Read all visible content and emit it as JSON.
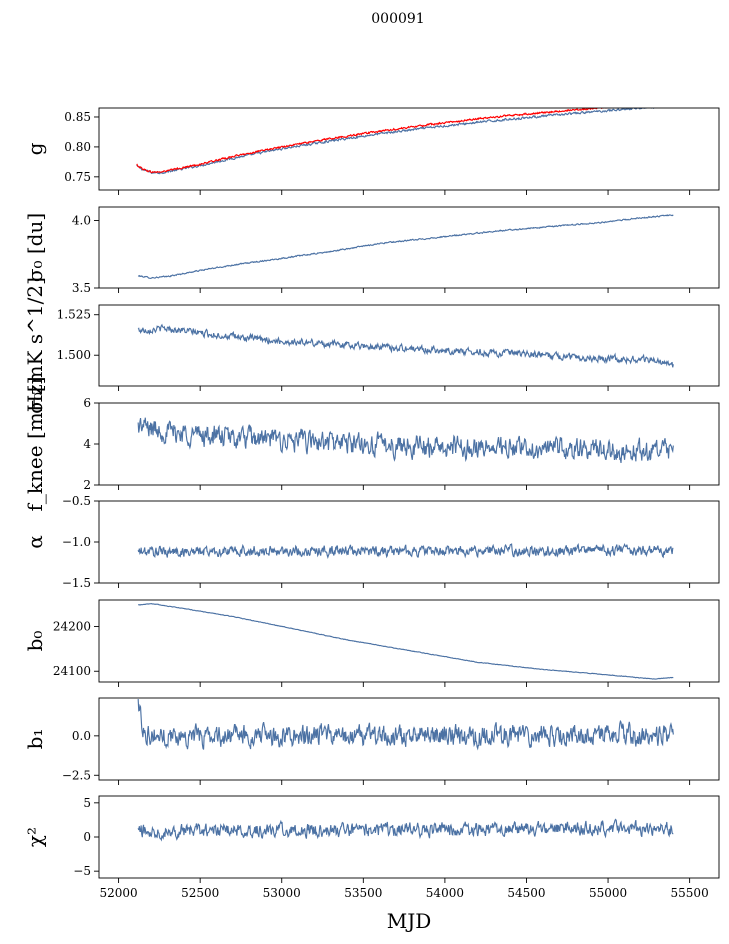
{
  "figure": {
    "title": "000091"
  },
  "chart_data": [
    {
      "type": "line",
      "id": "g",
      "ylabel": "g",
      "ylim": [
        0.728,
        0.865
      ],
      "yticks": [
        0.75,
        0.8,
        0.85
      ],
      "ytick_labels": [
        "0.75",
        "0.80",
        "0.85"
      ],
      "xlim": [
        51880,
        55680
      ],
      "series": [
        {
          "color": "#4c72a4",
          "noise": 0.0015,
          "points": [
            [
              52110,
              0.768
            ],
            [
              52150,
              0.762
            ],
            [
              52200,
              0.757
            ],
            [
              52260,
              0.757
            ],
            [
              52350,
              0.761
            ],
            [
              52500,
              0.769
            ],
            [
              52700,
              0.781
            ],
            [
              53000,
              0.797
            ],
            [
              53300,
              0.81
            ],
            [
              53600,
              0.822
            ],
            [
              53900,
              0.832
            ],
            [
              54200,
              0.841
            ],
            [
              54500,
              0.849
            ],
            [
              54800,
              0.856
            ],
            [
              55050,
              0.862
            ],
            [
              55400,
              0.869
            ]
          ]
        },
        {
          "color": "#ff0000",
          "noise": 0.0012,
          "points": [
            [
              52110,
              0.77
            ],
            [
              52150,
              0.763
            ],
            [
              52200,
              0.758
            ],
            [
              52260,
              0.758
            ],
            [
              52350,
              0.763
            ],
            [
              52500,
              0.771
            ],
            [
              52700,
              0.784
            ],
            [
              53000,
              0.8
            ],
            [
              53300,
              0.814
            ],
            [
              53600,
              0.826
            ],
            [
              53900,
              0.837
            ],
            [
              54200,
              0.847
            ],
            [
              54500,
              0.855
            ],
            [
              54800,
              0.862
            ],
            [
              55000,
              0.866
            ]
          ]
        }
      ]
    },
    {
      "type": "line",
      "id": "sigma0_du",
      "ylabel": "σ₀ [du]",
      "ylim": [
        3.5,
        4.1
      ],
      "yticks": [
        3.5,
        4.0
      ],
      "ytick_labels": [
        "3.5",
        "4.0"
      ],
      "xlim": [
        51880,
        55680
      ],
      "series": [
        {
          "color": "#4c72a4",
          "noise": 0.004,
          "points": [
            [
              52120,
              3.59
            ],
            [
              52200,
              3.575
            ],
            [
              52300,
              3.585
            ],
            [
              52500,
              3.63
            ],
            [
              52700,
              3.67
            ],
            [
              53000,
              3.72
            ],
            [
              53300,
              3.77
            ],
            [
              53600,
              3.83
            ],
            [
              54000,
              3.88
            ],
            [
              54300,
              3.92
            ],
            [
              54700,
              3.96
            ],
            [
              55000,
              3.99
            ],
            [
              55200,
              4.02
            ],
            [
              55400,
              4.04
            ]
          ]
        }
      ]
    },
    {
      "type": "line",
      "id": "sigma0_mk",
      "ylabel": "σ₀[mK s^1/2]",
      "ylim": [
        1.481,
        1.531
      ],
      "yticks": [
        1.5,
        1.525
      ],
      "ytick_labels": [
        "1.500",
        "1.525"
      ],
      "xlim": [
        51880,
        55680
      ],
      "series": [
        {
          "color": "#4c72a4",
          "noise": 0.0018,
          "points": [
            [
              52120,
              1.5155
            ],
            [
              52300,
              1.5165
            ],
            [
              52600,
              1.5125
            ],
            [
              53000,
              1.5085
            ],
            [
              53400,
              1.5065
            ],
            [
              53800,
              1.504
            ],
            [
              54200,
              1.502
            ],
            [
              54600,
              1.5
            ],
            [
              55000,
              1.498
            ],
            [
              55300,
              1.497
            ],
            [
              55400,
              1.493
            ]
          ]
        }
      ]
    },
    {
      "type": "line",
      "id": "fknee",
      "ylabel": "f_knee [mHz]",
      "ylim": [
        2,
        6
      ],
      "yticks": [
        2,
        4,
        6
      ],
      "ytick_labels": [
        "2",
        "4",
        "6"
      ],
      "xlim": [
        51880,
        55680
      ],
      "series": [
        {
          "color": "#4c72a4",
          "noise": 0.45,
          "points": [
            [
              52120,
              4.9
            ],
            [
              52300,
              4.6
            ],
            [
              52700,
              4.3
            ],
            [
              53200,
              4.1
            ],
            [
              53800,
              3.9
            ],
            [
              54400,
              3.8
            ],
            [
              55000,
              3.7
            ],
            [
              55400,
              3.6
            ]
          ]
        }
      ]
    },
    {
      "type": "line",
      "id": "alpha",
      "ylabel": "α",
      "ylim": [
        -1.5,
        -0.5
      ],
      "yticks": [
        -1.5,
        -1.0,
        -0.5
      ],
      "ytick_labels": [
        "−1.5",
        "−1.0",
        "−0.5"
      ],
      "xlim": [
        51880,
        55680
      ],
      "series": [
        {
          "color": "#4c72a4",
          "noise": 0.055,
          "points": [
            [
              52120,
              -1.12
            ],
            [
              53000,
              -1.11
            ],
            [
              54000,
              -1.11
            ],
            [
              55000,
              -1.1
            ],
            [
              55400,
              -1.11
            ]
          ]
        }
      ]
    },
    {
      "type": "line",
      "id": "b0",
      "ylabel": "b₀",
      "ylim": [
        24076,
        24259
      ],
      "yticks": [
        24100,
        24200
      ],
      "ytick_labels": [
        "24100",
        "24200"
      ],
      "xlim": [
        51880,
        55680
      ],
      "series": [
        {
          "color": "#4c72a4",
          "noise": 0.5,
          "points": [
            [
              52120,
              24248
            ],
            [
              52200,
              24251
            ],
            [
              52400,
              24240
            ],
            [
              52700,
              24222
            ],
            [
              53000,
              24200
            ],
            [
              53400,
              24170
            ],
            [
              53800,
              24145
            ],
            [
              54200,
              24120
            ],
            [
              54600,
              24104
            ],
            [
              55000,
              24092
            ],
            [
              55200,
              24085
            ],
            [
              55280,
              24083
            ],
            [
              55400,
              24086
            ]
          ]
        }
      ]
    },
    {
      "type": "line",
      "id": "b1",
      "ylabel": "b₁",
      "ylim": [
        -2.8,
        2.4
      ],
      "yticks": [
        -2.5,
        0.0
      ],
      "ytick_labels": [
        "−2.5",
        "0.0"
      ],
      "xlim": [
        51880,
        55680
      ],
      "series": [
        {
          "color": "#4c72a4",
          "noise": 0.55,
          "points": [
            [
              52120,
              2.1
            ],
            [
              52150,
              0.5
            ],
            [
              52200,
              0.0
            ],
            [
              53000,
              0.0
            ],
            [
              54000,
              0.0
            ],
            [
              55000,
              0.1
            ],
            [
              55400,
              0.0
            ]
          ]
        }
      ]
    },
    {
      "type": "line",
      "id": "chi2",
      "ylabel": "χ²",
      "ylim": [
        -6,
        6
      ],
      "yticks": [
        -5,
        0,
        5
      ],
      "ytick_labels": [
        "−5",
        "0",
        "5"
      ],
      "xlim": [
        51880,
        55680
      ],
      "xticks": [
        52000,
        52500,
        53000,
        53500,
        54000,
        54500,
        55000,
        55500
      ],
      "xtick_labels": [
        "52000",
        "52500",
        "53000",
        "53500",
        "54000",
        "54500",
        "55000",
        "55500"
      ],
      "xlabel": "MJD",
      "series": [
        {
          "color": "#4c72a4",
          "noise": 0.85,
          "points": [
            [
              52120,
              0.9
            ],
            [
              53000,
              1.0
            ],
            [
              54000,
              1.1
            ],
            [
              55000,
              1.3
            ],
            [
              55400,
              1.2
            ]
          ]
        }
      ]
    }
  ]
}
